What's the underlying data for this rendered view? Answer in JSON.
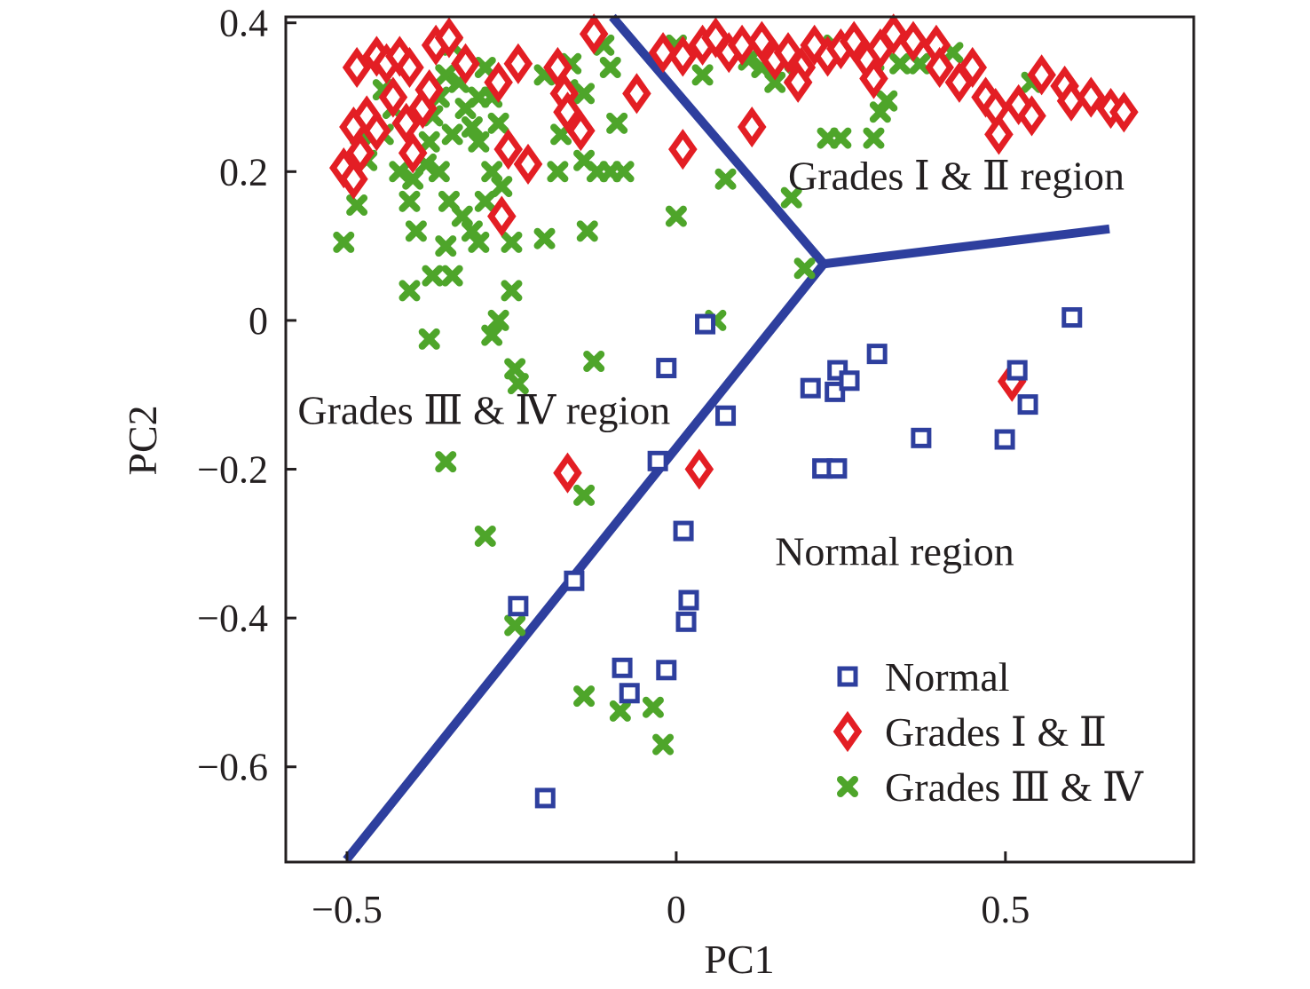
{
  "chart_data": {
    "type": "scatter",
    "title": "",
    "xlabel": "PC1",
    "ylabel": "PC2",
    "xlim": [
      -0.593,
      0.786
    ],
    "ylim": [
      -0.728,
      0.408
    ],
    "xticks": [
      -0.5,
      0,
      0.5
    ],
    "xtick_labels": [
      "−0.5",
      "0",
      "0.5"
    ],
    "yticks": [
      0.4,
      0.2,
      0,
      -0.2,
      -0.4,
      -0.6
    ],
    "ytick_labels": [
      "0.4",
      "0.2",
      "0",
      "−0.2",
      "−0.4",
      "−0.6"
    ],
    "grid": false,
    "legend": {
      "placement": "bottom-right",
      "entries": [
        {
          "label": "Normal",
          "marker": "square",
          "color": "#2e3f9e"
        },
        {
          "label": "Grades Ⅰ & Ⅱ",
          "marker": "diamond",
          "color": "#e31e24"
        },
        {
          "label": "Grades Ⅲ & Ⅳ",
          "marker": "cross",
          "color": "#4ea52a"
        }
      ]
    },
    "annotations": [
      {
        "text": "Grades Ⅰ & Ⅱ region",
        "x": 0.17,
        "y": 0.195
      },
      {
        "text": "Grades Ⅲ & Ⅳ region",
        "x": -0.575,
        "y": -0.12
      },
      {
        "text": "Normal region",
        "x": 0.15,
        "y": -0.31
      }
    ],
    "boundary": {
      "color": "#2e3f9e",
      "junction": [
        0.224,
        0.076
      ],
      "branches": [
        [
          [
            0.224,
            0.076
          ],
          [
            -0.097,
            0.408
          ]
        ],
        [
          [
            0.224,
            0.076
          ],
          [
            0.658,
            0.123
          ]
        ],
        [
          [
            0.224,
            0.076
          ],
          [
            -0.501,
            -0.725
          ]
        ]
      ]
    },
    "series": [
      {
        "name": "Normal",
        "marker": "square",
        "color": "#2e3f9e",
        "points": [
          [
            0.044,
            -0.005
          ],
          [
            -0.015,
            -0.064
          ],
          [
            0.075,
            -0.128
          ],
          [
            -0.028,
            -0.189
          ],
          [
            0.011,
            -0.283
          ],
          [
            0.019,
            -0.376
          ],
          [
            0.015,
            -0.405
          ],
          [
            -0.155,
            -0.35
          ],
          [
            -0.24,
            -0.384
          ],
          [
            -0.082,
            -0.467
          ],
          [
            -0.071,
            -0.501
          ],
          [
            -0.015,
            -0.47
          ],
          [
            -0.199,
            -0.642
          ],
          [
            0.204,
            -0.091
          ],
          [
            0.245,
            -0.067
          ],
          [
            0.241,
            -0.096
          ],
          [
            0.263,
            -0.081
          ],
          [
            0.305,
            -0.045
          ],
          [
            0.222,
            -0.199
          ],
          [
            0.244,
            -0.199
          ],
          [
            0.372,
            -0.158
          ],
          [
            0.518,
            -0.067
          ],
          [
            0.534,
            -0.113
          ],
          [
            0.499,
            -0.16
          ],
          [
            0.601,
            0.004
          ]
        ]
      },
      {
        "name": "Grades Ⅰ & Ⅱ",
        "marker": "diamond",
        "color": "#e31e24",
        "points": [
          [
            -0.485,
            0.34
          ],
          [
            -0.455,
            0.355
          ],
          [
            -0.44,
            0.345
          ],
          [
            -0.42,
            0.355
          ],
          [
            -0.405,
            0.34
          ],
          [
            -0.49,
            0.26
          ],
          [
            -0.47,
            0.275
          ],
          [
            -0.455,
            0.255
          ],
          [
            -0.48,
            0.225
          ],
          [
            -0.505,
            0.205
          ],
          [
            -0.49,
            0.19
          ],
          [
            -0.43,
            0.3
          ],
          [
            -0.41,
            0.265
          ],
          [
            -0.385,
            0.285
          ],
          [
            -0.375,
            0.31
          ],
          [
            -0.4,
            0.225
          ],
          [
            -0.365,
            0.37
          ],
          [
            -0.345,
            0.38
          ],
          [
            -0.32,
            0.345
          ],
          [
            -0.27,
            0.32
          ],
          [
            -0.255,
            0.23
          ],
          [
            -0.225,
            0.21
          ],
          [
            -0.265,
            0.14
          ],
          [
            -0.24,
            0.345
          ],
          [
            -0.18,
            0.34
          ],
          [
            -0.17,
            0.305
          ],
          [
            -0.165,
            0.28
          ],
          [
            -0.145,
            0.255
          ],
          [
            -0.125,
            0.385
          ],
          [
            -0.06,
            0.305
          ],
          [
            0.01,
            0.23
          ],
          [
            0.115,
            0.26
          ],
          [
            -0.02,
            0.36
          ],
          [
            0.01,
            0.355
          ],
          [
            0.04,
            0.37
          ],
          [
            0.06,
            0.38
          ],
          [
            0.08,
            0.36
          ],
          [
            0.1,
            0.37
          ],
          [
            0.13,
            0.375
          ],
          [
            0.15,
            0.35
          ],
          [
            0.17,
            0.36
          ],
          [
            0.19,
            0.34
          ],
          [
            0.21,
            0.37
          ],
          [
            0.23,
            0.355
          ],
          [
            0.185,
            0.32
          ],
          [
            0.25,
            0.365
          ],
          [
            0.27,
            0.375
          ],
          [
            0.29,
            0.35
          ],
          [
            0.31,
            0.365
          ],
          [
            0.33,
            0.385
          ],
          [
            0.36,
            0.375
          ],
          [
            0.395,
            0.37
          ],
          [
            0.4,
            0.34
          ],
          [
            0.43,
            0.32
          ],
          [
            0.47,
            0.3
          ],
          [
            0.45,
            0.34
          ],
          [
            0.485,
            0.285
          ],
          [
            0.49,
            0.25
          ],
          [
            0.52,
            0.29
          ],
          [
            0.54,
            0.275
          ],
          [
            0.555,
            0.33
          ],
          [
            0.59,
            0.315
          ],
          [
            0.6,
            0.295
          ],
          [
            0.63,
            0.3
          ],
          [
            0.66,
            0.285
          ],
          [
            0.68,
            0.28
          ],
          [
            0.3,
            0.325
          ],
          [
            -0.165,
            -0.205
          ],
          [
            0.035,
            -0.2
          ],
          [
            0.51,
            -0.082
          ]
        ]
      },
      {
        "name": "Grades Ⅲ & Ⅳ",
        "marker": "cross",
        "color": "#4ea52a",
        "points": [
          [
            -0.48,
            0.25
          ],
          [
            -0.47,
            0.215
          ],
          [
            -0.485,
            0.155
          ],
          [
            -0.505,
            0.105
          ],
          [
            -0.445,
            0.31
          ],
          [
            -0.43,
            0.285
          ],
          [
            -0.445,
            0.25
          ],
          [
            -0.42,
            0.2
          ],
          [
            -0.4,
            0.19
          ],
          [
            -0.405,
            0.16
          ],
          [
            -0.395,
            0.12
          ],
          [
            -0.38,
            0.21
          ],
          [
            -0.375,
            0.24
          ],
          [
            -0.37,
            0.275
          ],
          [
            -0.36,
            0.3
          ],
          [
            -0.35,
            0.33
          ],
          [
            -0.34,
            0.37
          ],
          [
            -0.33,
            0.32
          ],
          [
            -0.32,
            0.285
          ],
          [
            -0.31,
            0.26
          ],
          [
            -0.3,
            0.3
          ],
          [
            -0.29,
            0.34
          ],
          [
            -0.28,
            0.3
          ],
          [
            -0.27,
            0.265
          ],
          [
            -0.3,
            0.24
          ],
          [
            -0.34,
            0.25
          ],
          [
            -0.36,
            0.2
          ],
          [
            -0.345,
            0.16
          ],
          [
            -0.325,
            0.14
          ],
          [
            -0.31,
            0.12
          ],
          [
            -0.29,
            0.16
          ],
          [
            -0.28,
            0.2
          ],
          [
            -0.265,
            0.18
          ],
          [
            -0.35,
            0.1
          ],
          [
            -0.37,
            0.06
          ],
          [
            -0.34,
            0.06
          ],
          [
            -0.3,
            0.105
          ],
          [
            -0.25,
            0.105
          ],
          [
            -0.405,
            0.04
          ],
          [
            -0.25,
            0.04
          ],
          [
            -0.27,
            0.0
          ],
          [
            -0.28,
            -0.02
          ],
          [
            -0.375,
            -0.025
          ],
          [
            -0.245,
            -0.065
          ],
          [
            -0.24,
            -0.085
          ],
          [
            -0.125,
            -0.055
          ],
          [
            -0.35,
            -0.19
          ],
          [
            -0.29,
            -0.29
          ],
          [
            -0.14,
            -0.235
          ],
          [
            -0.135,
            0.12
          ],
          [
            -0.2,
            0.11
          ],
          [
            -0.18,
            0.2
          ],
          [
            -0.14,
            0.215
          ],
          [
            -0.12,
            0.2
          ],
          [
            -0.1,
            0.2
          ],
          [
            -0.08,
            0.2
          ],
          [
            -0.09,
            0.265
          ],
          [
            -0.175,
            0.25
          ],
          [
            -0.165,
            0.31
          ],
          [
            -0.14,
            0.305
          ],
          [
            -0.1,
            0.34
          ],
          [
            -0.11,
            0.37
          ],
          [
            -0.2,
            0.33
          ],
          [
            -0.16,
            0.345
          ],
          [
            0.0,
            0.14
          ],
          [
            0.075,
            0.19
          ],
          [
            0.0,
            0.37
          ],
          [
            0.04,
            0.33
          ],
          [
            0.09,
            0.36
          ],
          [
            0.11,
            0.35
          ],
          [
            0.13,
            0.34
          ],
          [
            0.15,
            0.32
          ],
          [
            0.18,
            0.33
          ],
          [
            0.175,
            0.165
          ],
          [
            0.195,
            0.07
          ],
          [
            0.23,
            0.245
          ],
          [
            0.25,
            0.245
          ],
          [
            0.3,
            0.245
          ],
          [
            0.31,
            0.28
          ],
          [
            0.32,
            0.295
          ],
          [
            0.34,
            0.345
          ],
          [
            0.37,
            0.345
          ],
          [
            0.42,
            0.36
          ],
          [
            0.54,
            0.32
          ],
          [
            0.06,
            0.0
          ],
          [
            0.3,
            0.33
          ],
          [
            0.24,
            0.37
          ],
          [
            -0.245,
            -0.41
          ],
          [
            -0.14,
            -0.505
          ],
          [
            -0.085,
            -0.525
          ],
          [
            -0.035,
            -0.52
          ],
          [
            -0.02,
            -0.57
          ]
        ]
      }
    ]
  }
}
